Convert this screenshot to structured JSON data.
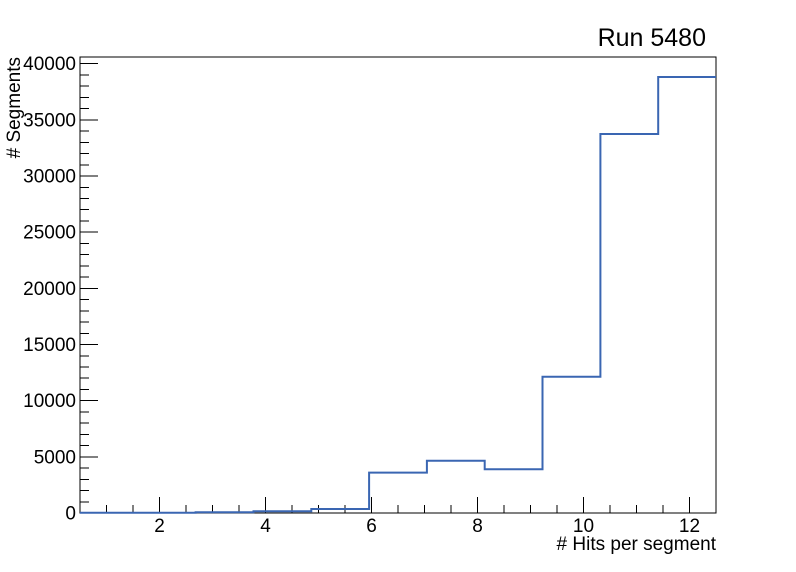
{
  "page": {
    "background_color": "#ffffff"
  },
  "chart_data": {
    "type": "histogram",
    "title": "Run 5480",
    "xlabel": "# Hits per segment",
    "ylabel": "# Segments",
    "xlim": [
      0.5,
      12.5
    ],
    "ylim": [
      0,
      40600
    ],
    "grid": false,
    "legend": "none",
    "line_color": "#3a66b2",
    "frame_color": "#000000",
    "bin_edges": [
      0.5,
      1.5909,
      2.6818,
      3.7727,
      4.8636,
      5.9545,
      7.0455,
      8.1364,
      9.2273,
      10.3182,
      11.4091,
      12.5
    ],
    "values": [
      15,
      30,
      60,
      150,
      360,
      3600,
      4650,
      3890,
      12130,
      33740,
      38820
    ],
    "x_major_ticks": [
      2,
      4,
      6,
      8,
      10,
      12
    ],
    "x_major_labels": [
      "2",
      "4",
      "6",
      "8",
      "10",
      "12"
    ],
    "x_minor_step": 0.5,
    "y_major_ticks": [
      0,
      5000,
      10000,
      15000,
      20000,
      25000,
      30000,
      35000,
      40000
    ],
    "y_major_labels": [
      "0",
      "5000",
      "10000",
      "15000",
      "20000",
      "25000",
      "30000",
      "35000",
      "40000"
    ],
    "y_minor_step": 1000
  }
}
